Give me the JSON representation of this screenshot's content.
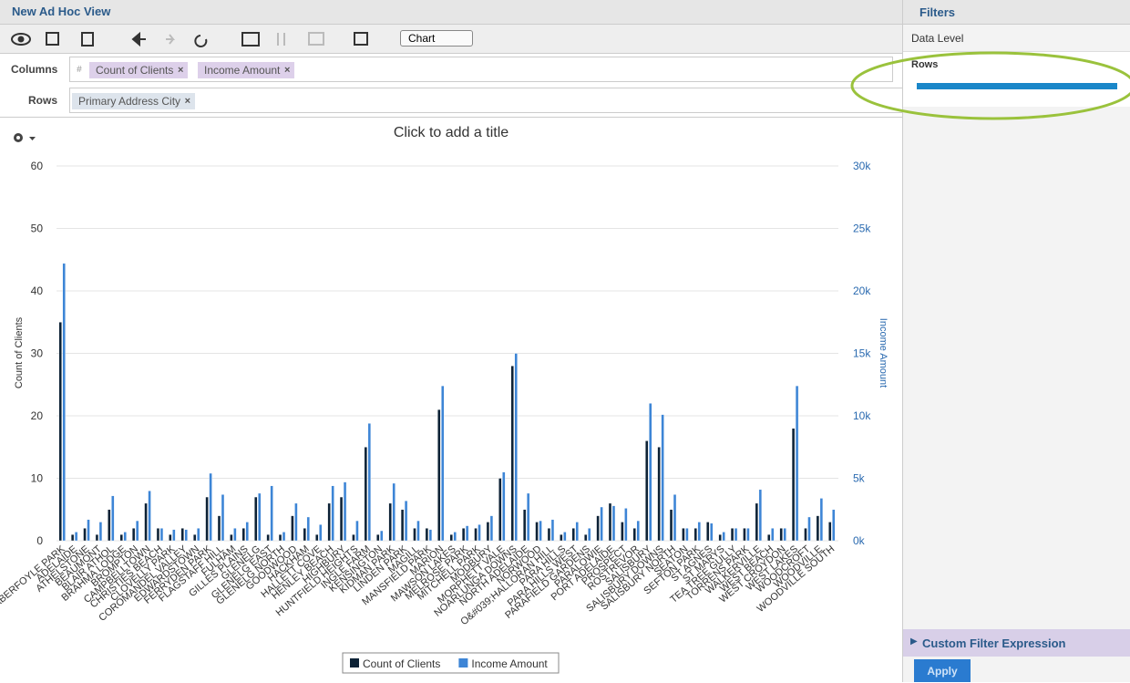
{
  "app": {
    "title": "New Ad Hoc View",
    "view_select": "Chart",
    "columns_label": "Columns",
    "column_chips": [
      "Count of Clients",
      "Income Amount"
    ],
    "rows_label": "Rows",
    "row_chips": [
      "Primary Address City"
    ],
    "filters": {
      "title": "Filters",
      "data_level": "Data Level",
      "rows": "Rows",
      "custom": "Custom Filter Expression",
      "apply": "Apply"
    }
  },
  "chart_data": {
    "type": "bar",
    "title": "Click to add a title",
    "ylabel": "Count of Clients",
    "y2label": "Income Amount",
    "categories": [
      "ABERFOYLE PARK",
      "ADELAIDE",
      "ATHELSTONE",
      "BEAUMONT",
      "BLAIR ATHOL",
      "BRAHMA LODGE",
      "BROMPTON",
      "CAMPBELLTOWN",
      "CHRISTIES BEACH",
      "CLOVELLY PARK",
      "COROMANDEL VALLEY",
      "EDWARDSTOWN",
      "FERRYDEN PARK",
      "FLAGSTAFF HILL",
      "FULHAM",
      "GILLES PLAINS",
      "GLENELG",
      "GLENELG EAST",
      "GLENELG NORTH",
      "GOODWOOD",
      "HACKHAM",
      "HALLETT COVE",
      "HENLEY BEACH",
      "HIGHBURY",
      "HUNTFIELD HEIGHTS",
      "INGLE FARM",
      "KENSINGTON",
      "KIDMAN PARK",
      "LINDEN PARK",
      "MAGILL",
      "MANSFIELD PARK",
      "MARION",
      "MAWSON LAKES",
      "MELROSE PARK",
      "MITCHELL PARK",
      "MODBURY",
      "MORPHETT VALE",
      "NOARLUNGA DOWNS",
      "NORTH ADELAIDE",
      "NORWOOD",
      "O&#039;HALLORAN HILL",
      "PARA HILLS",
      "PARA HILLS WEST",
      "PARAFIELD GARDENS",
      "PARALOWIE",
      "PORT ADELAIDE",
      "PROSPECT",
      "ROSTREVOR",
      "SALISBURY",
      "SALISBURY DOWNS",
      "SALISBURY NORTH",
      "SEATON",
      "SEFTON PARK",
      "ST AGNES",
      "ST MARYS",
      "TEA TREE GULLY",
      "TORRENS PARK",
      "WALKERVILLE",
      "WEST BEACH",
      "WEST CROYDON",
      "WEST LAKES",
      "WOODCROFT",
      "WOODVILLE",
      "WOODVILLE SOUTH"
    ],
    "series": [
      {
        "name": "Count of Clients",
        "color": "#0d2236",
        "values": [
          35,
          1,
          2,
          1,
          5,
          1,
          2,
          6,
          2,
          1,
          2,
          1,
          7,
          4,
          1,
          2,
          7,
          1,
          1,
          4,
          2,
          1,
          6,
          7,
          1,
          15,
          1,
          6,
          5,
          2,
          2,
          21,
          1,
          2,
          2,
          3,
          10,
          28,
          5,
          3,
          2,
          1,
          2,
          1,
          4,
          6,
          3,
          2,
          16,
          15,
          5,
          2,
          2,
          3,
          1,
          2,
          2,
          6,
          1,
          2,
          18,
          2,
          4,
          3
        ]
      },
      {
        "name": "Income Amount",
        "color": "#3d85d6",
        "axis": "y2",
        "values": [
          22200,
          700,
          1700,
          1500,
          3600,
          700,
          1600,
          4000,
          1000,
          900,
          900,
          1000,
          5400,
          3700,
          1000,
          1500,
          3800,
          4400,
          700,
          3000,
          1900,
          1300,
          4400,
          4700,
          1600,
          9400,
          800,
          4600,
          3200,
          1600,
          900,
          12400,
          700,
          1200,
          1300,
          2000,
          5500,
          15000,
          3800,
          1600,
          1700,
          700,
          1500,
          1000,
          2700,
          2800,
          2600,
          1600,
          11000,
          10100,
          3700,
          1000,
          1500,
          1400,
          700,
          1000,
          1000,
          4100,
          1000,
          1000,
          12400,
          1900,
          3400,
          2500
        ]
      }
    ],
    "ylim": [
      0,
      60
    ],
    "yticks": [
      0,
      10,
      20,
      30,
      40,
      50,
      60
    ],
    "y2lim": [
      0,
      30000
    ],
    "y2ticks": [
      {
        "value": 0,
        "label": "0k"
      },
      {
        "value": 5000,
        "label": "5k"
      },
      {
        "value": 10000,
        "label": "10k"
      },
      {
        "value": 15000,
        "label": "15k"
      },
      {
        "value": 20000,
        "label": "20k"
      },
      {
        "value": 25000,
        "label": "25k"
      },
      {
        "value": 30000,
        "label": "30k"
      }
    ],
    "grid": true
  }
}
